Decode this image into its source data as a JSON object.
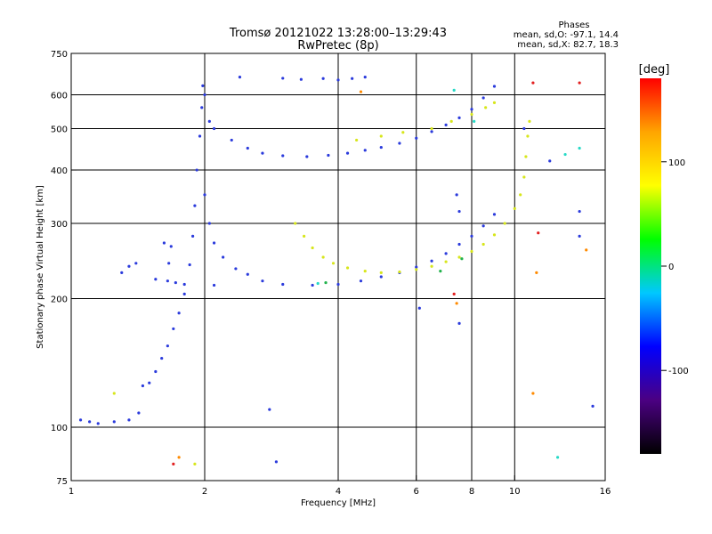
{
  "chart_data": {
    "type": "scatter",
    "title": "Tromsø 20121022 13:28:00–13:29:43",
    "subtitle": "RwPretec (8p)",
    "xlabel": "Frequency [MHz]",
    "ylabel": "Stationary phase Virtual Height [km]",
    "x_scale": "log",
    "y_scale": "log",
    "xlim": [
      1,
      16
    ],
    "ylim": [
      75,
      750
    ],
    "x_ticks": [
      1,
      2,
      4,
      6,
      8,
      10,
      16
    ],
    "x_tick_labels": [
      "1",
      "2",
      "4",
      "6",
      "8",
      "10",
      "16"
    ],
    "y_ticks": [
      75,
      100,
      200,
      300,
      400,
      500,
      600,
      750
    ],
    "y_tick_labels": [
      "75",
      "100",
      "200",
      "300",
      "400",
      "500",
      "600",
      "750"
    ],
    "x_gridlines": [
      2,
      4,
      6,
      8,
      10
    ],
    "y_gridlines": [
      100,
      200,
      300,
      400,
      500,
      600
    ],
    "grid": true,
    "stats": {
      "title": "Phases",
      "line1": "mean, sd,O: -97.1, 14.4",
      "line2": "mean, sd,X:  82.7, 18.3"
    },
    "colorbar": {
      "label": "[deg]",
      "ticks": [
        100,
        0,
        -100
      ],
      "tick_labels": [
        "100",
        "0",
        "-100"
      ],
      "range": [
        -180,
        180
      ],
      "colors": [
        "#000000",
        "#4b0082",
        "#0000ff",
        "#00c8ff",
        "#00ff00",
        "#ffff00",
        "#ffa500",
        "#ff0000"
      ]
    },
    "series": [
      {
        "phase": -100,
        "color": "#2b3bdc",
        "points": [
          [
            1.05,
            104
          ],
          [
            1.1,
            103
          ],
          [
            1.15,
            102
          ],
          [
            1.25,
            103
          ],
          [
            1.35,
            104
          ],
          [
            1.42,
            108
          ],
          [
            1.45,
            125
          ],
          [
            1.5,
            127
          ],
          [
            1.55,
            135
          ],
          [
            1.6,
            145
          ],
          [
            1.65,
            155
          ],
          [
            1.7,
            170
          ],
          [
            1.75,
            185
          ],
          [
            1.8,
            205
          ],
          [
            1.85,
            240
          ],
          [
            1.88,
            280
          ],
          [
            1.9,
            330
          ],
          [
            1.92,
            400
          ],
          [
            1.95,
            480
          ],
          [
            1.97,
            560
          ],
          [
            1.98,
            630
          ],
          [
            1.3,
            230
          ],
          [
            1.35,
            238
          ],
          [
            1.4,
            242
          ],
          [
            1.55,
            222
          ],
          [
            1.65,
            220
          ],
          [
            1.72,
            218
          ],
          [
            1.8,
            216
          ],
          [
            1.62,
            270
          ],
          [
            1.68,
            265
          ],
          [
            1.66,
            242
          ],
          [
            2.0,
            350
          ],
          [
            2.05,
            300
          ],
          [
            2.1,
            270
          ],
          [
            2.2,
            250
          ],
          [
            2.35,
            235
          ],
          [
            2.5,
            228
          ],
          [
            2.7,
            220
          ],
          [
            3.0,
            216
          ],
          [
            3.5,
            215
          ],
          [
            4.0,
            216
          ],
          [
            4.5,
            220
          ],
          [
            5.0,
            225
          ],
          [
            5.5,
            230
          ],
          [
            6.0,
            237
          ],
          [
            6.5,
            245
          ],
          [
            7.0,
            255
          ],
          [
            7.5,
            268
          ],
          [
            8.0,
            280
          ],
          [
            8.5,
            296
          ],
          [
            9.0,
            315
          ],
          [
            2.0,
            600
          ],
          [
            2.05,
            520
          ],
          [
            2.1,
            500
          ],
          [
            2.3,
            470
          ],
          [
            2.5,
            450
          ],
          [
            2.7,
            438
          ],
          [
            3.0,
            432
          ],
          [
            3.4,
            430
          ],
          [
            3.8,
            433
          ],
          [
            4.2,
            438
          ],
          [
            4.6,
            445
          ],
          [
            5.0,
            452
          ],
          [
            5.5,
            462
          ],
          [
            6.0,
            475
          ],
          [
            6.5,
            492
          ],
          [
            7.0,
            510
          ],
          [
            7.5,
            530
          ],
          [
            8.0,
            555
          ],
          [
            8.5,
            590
          ],
          [
            9.0,
            628
          ],
          [
            2.1,
            215
          ],
          [
            2.4,
            660
          ],
          [
            3.0,
            656
          ],
          [
            3.3,
            652
          ],
          [
            3.7,
            655
          ],
          [
            4.0,
            650
          ],
          [
            4.3,
            655
          ],
          [
            4.6,
            660
          ],
          [
            2.8,
            110
          ],
          [
            2.9,
            83
          ],
          [
            6.1,
            190
          ],
          [
            7.5,
            175
          ],
          [
            7.4,
            350
          ],
          [
            7.5,
            320
          ],
          [
            10.5,
            500
          ],
          [
            12.0,
            420
          ],
          [
            14.0,
            280
          ],
          [
            14.0,
            320
          ],
          [
            15.0,
            112
          ]
        ]
      },
      {
        "phase": 100,
        "color": "#d7e61c",
        "points": [
          [
            3.2,
            300
          ],
          [
            3.35,
            280
          ],
          [
            3.5,
            263
          ],
          [
            3.7,
            250
          ],
          [
            3.9,
            242
          ],
          [
            4.2,
            236
          ],
          [
            4.6,
            232
          ],
          [
            5.0,
            230
          ],
          [
            5.5,
            231
          ],
          [
            6.0,
            234
          ],
          [
            6.5,
            238
          ],
          [
            7.0,
            244
          ],
          [
            7.5,
            250
          ],
          [
            8.0,
            258
          ],
          [
            8.5,
            268
          ],
          [
            9.0,
            282
          ],
          [
            9.5,
            300
          ],
          [
            10.0,
            325
          ],
          [
            10.3,
            350
          ],
          [
            10.5,
            385
          ],
          [
            10.6,
            430
          ],
          [
            10.7,
            480
          ],
          [
            10.8,
            520
          ],
          [
            4.4,
            470
          ],
          [
            5.0,
            480
          ],
          [
            5.6,
            490
          ],
          [
            6.5,
            500
          ],
          [
            7.2,
            520
          ],
          [
            8.0,
            540
          ],
          [
            8.6,
            560
          ],
          [
            9.0,
            575
          ],
          [
            1.25,
            120
          ],
          [
            1.9,
            82
          ]
        ]
      },
      {
        "phase": 40,
        "color": "#22b24c",
        "points": [
          [
            3.75,
            218
          ],
          [
            6.8,
            232
          ],
          [
            7.6,
            248
          ]
        ]
      },
      {
        "phase": 30,
        "color": "#26d9c6",
        "points": [
          [
            3.6,
            217
          ],
          [
            8.1,
            520
          ],
          [
            7.3,
            615
          ],
          [
            13.0,
            435
          ],
          [
            14.0,
            450
          ],
          [
            12.5,
            85
          ]
        ]
      },
      {
        "phase": 150,
        "color": "#ff8a00",
        "points": [
          [
            11.0,
            120
          ],
          [
            7.4,
            195
          ],
          [
            4.5,
            610
          ],
          [
            11.2,
            230
          ],
          [
            14.5,
            260
          ],
          [
            1.75,
            85
          ]
        ]
      },
      {
        "phase": 180,
        "color": "#e21f1f",
        "points": [
          [
            11.0,
            640
          ],
          [
            11.3,
            285
          ],
          [
            7.3,
            205
          ],
          [
            14.0,
            640
          ],
          [
            1.7,
            82
          ]
        ]
      }
    ]
  }
}
